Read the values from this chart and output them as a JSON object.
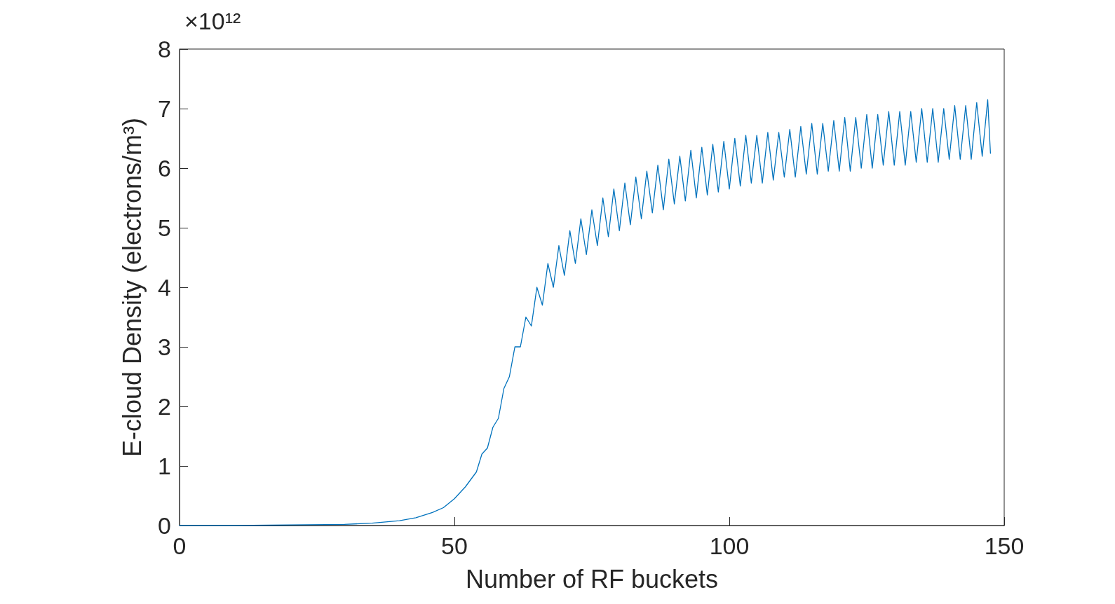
{
  "chart_data": {
    "type": "line",
    "xlabel": "Number of RF buckets",
    "ylabel": "E-cloud Density (electrons/m³)",
    "annotations": [
      "×10¹²"
    ],
    "xlim": [
      0,
      150
    ],
    "xticks": [
      0,
      50,
      100,
      150
    ],
    "ylim": [
      0,
      8
    ],
    "yticks": [
      0,
      1,
      2,
      3,
      4,
      5,
      6,
      7,
      8
    ],
    "grid": false,
    "marker": "none",
    "line_style": "solid",
    "series": [
      {
        "color": "#0072bd",
        "x": [
          0,
          10,
          20,
          30,
          35,
          40,
          43,
          46,
          48,
          50,
          52,
          54,
          55,
          56,
          57,
          58,
          59,
          60,
          61,
          62,
          63,
          64,
          65,
          66,
          67,
          68,
          69,
          70,
          71,
          72,
          73,
          74,
          75,
          76,
          77,
          78,
          79,
          80,
          81,
          82,
          83,
          84,
          85,
          86,
          87,
          88,
          89,
          90,
          91,
          92,
          93,
          94,
          95,
          96,
          97,
          98,
          99,
          100,
          101,
          102,
          103,
          104,
          105,
          106,
          107,
          108,
          109,
          110,
          111,
          112,
          113,
          114,
          115,
          116,
          117,
          118,
          119,
          120,
          121,
          122,
          123,
          124,
          125,
          126,
          127,
          128,
          129,
          130,
          131,
          132,
          133,
          134,
          135,
          136,
          137,
          138,
          139,
          140,
          141,
          142,
          143,
          144,
          145,
          146,
          147,
          147.5
        ],
        "values": [
          0,
          0,
          0.01,
          0.02,
          0.04,
          0.08,
          0.13,
          0.22,
          0.3,
          0.45,
          0.65,
          0.9,
          1.2,
          1.3,
          1.65,
          1.8,
          2.3,
          2.5,
          3.0,
          3.0,
          3.5,
          3.35,
          4.0,
          3.7,
          4.4,
          4.0,
          4.7,
          4.2,
          4.95,
          4.4,
          5.15,
          4.55,
          5.3,
          4.7,
          5.5,
          4.85,
          5.65,
          4.95,
          5.75,
          5.05,
          5.85,
          5.15,
          5.95,
          5.25,
          6.05,
          5.3,
          6.15,
          5.4,
          6.2,
          5.45,
          6.3,
          5.5,
          6.35,
          5.55,
          6.4,
          5.6,
          6.45,
          5.65,
          6.5,
          5.7,
          6.55,
          5.75,
          6.55,
          5.75,
          6.6,
          5.8,
          6.6,
          5.85,
          6.65,
          5.85,
          6.7,
          5.9,
          6.75,
          5.9,
          6.75,
          5.95,
          6.8,
          5.95,
          6.85,
          5.95,
          6.85,
          6.0,
          6.9,
          6.0,
          6.9,
          6.05,
          6.95,
          6.05,
          6.95,
          6.05,
          6.95,
          6.1,
          7.0,
          6.1,
          7.0,
          6.1,
          7.0,
          6.15,
          7.05,
          6.15,
          7.05,
          6.15,
          7.1,
          6.2,
          7.15,
          6.25
        ]
      }
    ]
  }
}
